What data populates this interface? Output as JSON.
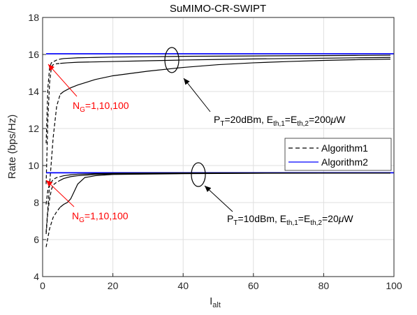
{
  "chart_data": {
    "type": "line",
    "title": "SuMIMO-CR-SWIPT",
    "xlabel": "I",
    "xlabel_sub": "alt",
    "ylabel": "Rate (bps/Hz)",
    "xlim": [
      0,
      100
    ],
    "ylim": [
      4,
      18
    ],
    "x_ticks": [
      0,
      20,
      40,
      60,
      80,
      100
    ],
    "y_ticks": [
      4,
      6,
      8,
      10,
      12,
      14,
      16,
      18
    ],
    "grid": true,
    "legend_position": "right",
    "legend": [
      {
        "label": "Algorithm1",
        "style": "dashed",
        "color": "#000000"
      },
      {
        "label": "Algorithm2",
        "style": "solid",
        "color": "#0000ff"
      }
    ],
    "series": [
      {
        "group": "P_T=20dBm",
        "algorithm": "Algorithm2",
        "N_G": 1,
        "color": "#0000ff",
        "style": "solid",
        "x": [
          1,
          100
        ],
        "y": [
          16.05,
          16.05
        ]
      },
      {
        "group": "P_T=20dBm",
        "algorithm": "Algorithm2",
        "N_G": 10,
        "color": "#0000ff",
        "style": "solid",
        "x": [
          1,
          100
        ],
        "y": [
          16.03,
          16.03
        ]
      },
      {
        "group": "P_T=20dBm",
        "algorithm": "Algorithm1",
        "N_G": 1,
        "color": "#000000",
        "style": "dashed-then-solid",
        "x": [
          1,
          1.5,
          2,
          2.5,
          3,
          3.5,
          4,
          5,
          6,
          8,
          10,
          15,
          20,
          30,
          40,
          50,
          60,
          70,
          80,
          90,
          99
        ],
        "y": [
          11.2,
          14.2,
          15.3,
          15.55,
          15.62,
          15.65,
          15.7,
          15.75,
          15.78,
          15.8,
          15.82,
          15.84,
          15.86,
          15.88,
          15.9,
          15.91,
          15.92,
          15.93,
          15.94,
          15.95,
          15.96
        ]
      },
      {
        "group": "P_T=20dBm",
        "algorithm": "Algorithm1",
        "N_G": 10,
        "color": "#000000",
        "style": "dashed-then-solid",
        "x": [
          1,
          1.5,
          2,
          2.5,
          3,
          4,
          5,
          7,
          10,
          20,
          30,
          40,
          50,
          60,
          70,
          80,
          90,
          99
        ],
        "y": [
          9.0,
          12.5,
          14.5,
          15.3,
          15.45,
          15.5,
          15.52,
          15.55,
          15.58,
          15.62,
          15.66,
          15.7,
          15.73,
          15.76,
          15.78,
          15.8,
          15.82,
          15.84
        ]
      },
      {
        "group": "P_T=20dBm",
        "algorithm": "Algorithm1",
        "N_G": 100,
        "color": "#000000",
        "style": "dashed-then-solid",
        "x": [
          1,
          2,
          3,
          4,
          5,
          6,
          8,
          10,
          15,
          20,
          30,
          40,
          50,
          60,
          70,
          80,
          90,
          99
        ],
        "y": [
          6.4,
          9.0,
          11.5,
          13.2,
          13.85,
          14.0,
          14.2,
          14.35,
          14.65,
          14.85,
          15.1,
          15.3,
          15.45,
          15.55,
          15.62,
          15.68,
          15.72,
          15.75
        ]
      },
      {
        "group": "P_T=10dBm",
        "algorithm": "Algorithm2",
        "N_G": 1,
        "color": "#0000ff",
        "style": "solid",
        "x": [
          1,
          100
        ],
        "y": [
          9.62,
          9.62
        ]
      },
      {
        "group": "P_T=10dBm",
        "algorithm": "Algorithm2",
        "N_G": 10,
        "color": "#0000ff",
        "style": "solid",
        "x": [
          1,
          100
        ],
        "y": [
          9.6,
          9.6
        ]
      },
      {
        "group": "P_T=10dBm",
        "algorithm": "Algorithm1",
        "N_G": 1,
        "color": "#000000",
        "style": "dashed-then-solid",
        "x": [
          1,
          1.5,
          2,
          2.5,
          3,
          4,
          5,
          6,
          8,
          10,
          15,
          20,
          40,
          60,
          80,
          99
        ],
        "y": [
          7.9,
          8.7,
          9.0,
          9.1,
          9.25,
          9.35,
          9.4,
          9.45,
          9.5,
          9.53,
          9.56,
          9.58,
          9.6,
          9.6,
          9.6,
          9.6
        ]
      },
      {
        "group": "P_T=10dBm",
        "algorithm": "Algorithm1",
        "N_G": 10,
        "color": "#000000",
        "style": "dashed-then-solid",
        "x": [
          1,
          1.5,
          2,
          2.5,
          3,
          4,
          5,
          6,
          8,
          10,
          15,
          20,
          40,
          60,
          80,
          99
        ],
        "y": [
          6.3,
          7.5,
          8.2,
          8.7,
          8.95,
          9.1,
          9.2,
          9.3,
          9.4,
          9.45,
          9.52,
          9.55,
          9.58,
          9.59,
          9.6,
          9.6
        ]
      },
      {
        "group": "P_T=10dBm",
        "algorithm": "Algorithm1",
        "N_G": 100,
        "color": "#000000",
        "style": "dashed-then-solid",
        "x": [
          1,
          2,
          3,
          4,
          5,
          6,
          7,
          8,
          9,
          10,
          12,
          15,
          20,
          40,
          60,
          80,
          99
        ],
        "y": [
          5.6,
          6.6,
          7.2,
          7.5,
          7.75,
          7.9,
          8.0,
          8.2,
          8.6,
          9.0,
          9.35,
          9.45,
          9.52,
          9.56,
          9.58,
          9.59,
          9.6
        ]
      }
    ],
    "annotations": [
      {
        "text": "P",
        "sub": "T",
        "text2": "=20dBm, E",
        "sub2": "th,1",
        "text3": "=E",
        "sub3": "th,2",
        "text4": "=200",
        "mu": "μ",
        "text5": "W"
      },
      {
        "text": "P",
        "sub": "T",
        "text2": "=10dBm, E",
        "sub2": "th,1",
        "text3": "=E",
        "sub3": "th,2",
        "text4": "=20",
        "mu": "μ",
        "text5": "W"
      },
      {
        "text": "N",
        "sub": "G",
        "text2": "=1,10,100",
        "color": "#ff0000"
      },
      {
        "text": "N",
        "sub": "G",
        "text2": "=1,10,100",
        "color": "#ff0000"
      }
    ]
  }
}
